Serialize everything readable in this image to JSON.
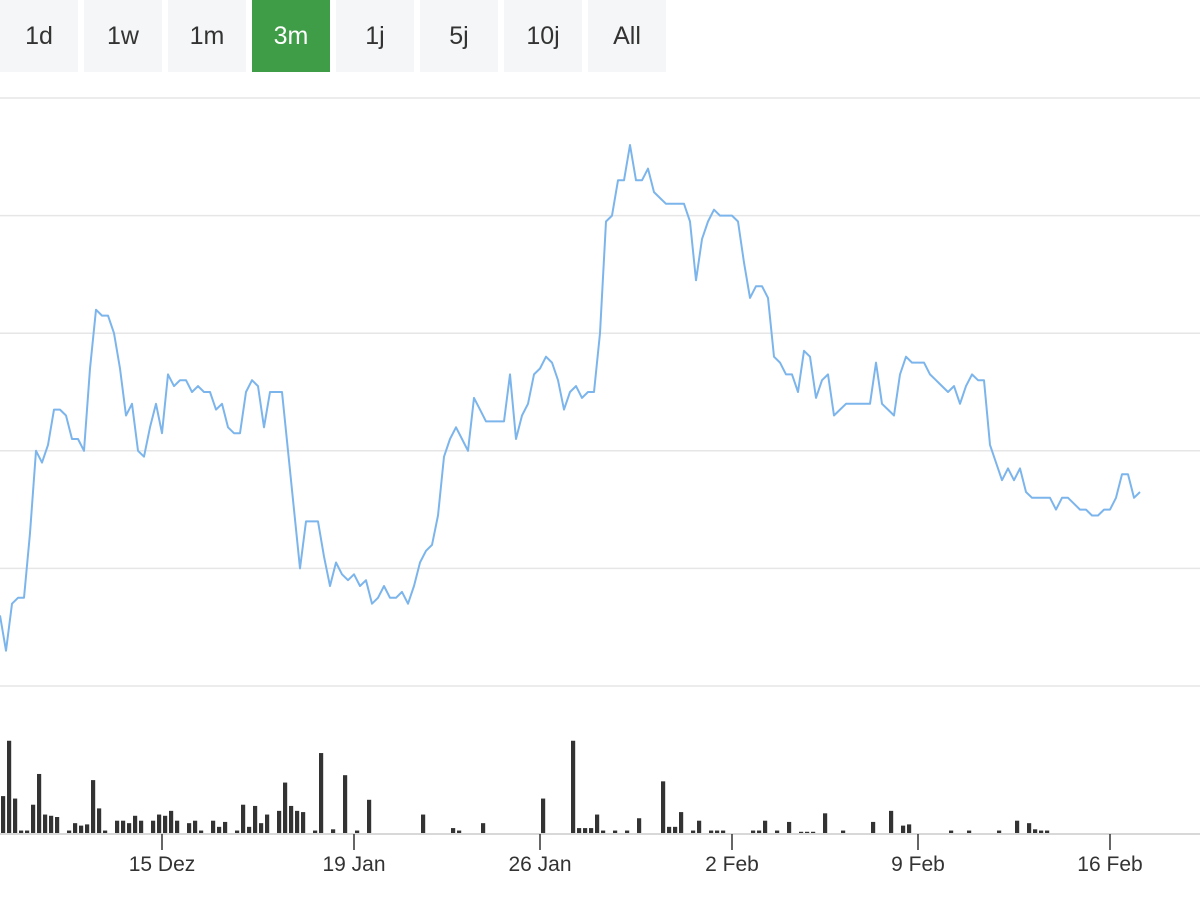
{
  "range_selector": {
    "buttons": [
      {
        "label": "1d",
        "active": false
      },
      {
        "label": "1w",
        "active": false
      },
      {
        "label": "1m",
        "active": false
      },
      {
        "label": "3m",
        "active": true
      },
      {
        "label": "1j",
        "active": false
      },
      {
        "label": "5j",
        "active": false
      },
      {
        "label": "10j",
        "active": false
      },
      {
        "label": "All",
        "active": false
      }
    ],
    "active_color": "#3f9c47"
  },
  "chart_data": {
    "type": "line",
    "title": "",
    "xlabel": "",
    "ylabel": "",
    "grid": true,
    "line_color": "#7cb5ec",
    "volume_color": "#333333",
    "x_ticks": [
      {
        "label": "15 Dez",
        "x": 27
      },
      {
        "label": "19 Jan",
        "x": 59
      },
      {
        "label": "26 Jan",
        "x": 90
      },
      {
        "label": "2 Feb",
        "x": 122
      },
      {
        "label": "9 Feb",
        "x": 153
      },
      {
        "label": "16 Feb",
        "x": 185
      }
    ],
    "x_range": [
      0,
      200
    ],
    "y_range": [
      0,
      5
    ],
    "y_gridlines": [
      0,
      1,
      2,
      3,
      4,
      5
    ],
    "y_tick_labels": [],
    "series": [
      {
        "type": "line",
        "points": [
          [
            0,
            0.6
          ],
          [
            1,
            0.3
          ],
          [
            2,
            0.7
          ],
          [
            3,
            0.75
          ],
          [
            4,
            0.75
          ],
          [
            5,
            1.3
          ],
          [
            6,
            2.0
          ],
          [
            7,
            1.9
          ],
          [
            8,
            2.05
          ],
          [
            9,
            2.35
          ],
          [
            10,
            2.35
          ],
          [
            11,
            2.3
          ],
          [
            12,
            2.1
          ],
          [
            13,
            2.1
          ],
          [
            14,
            2.0
          ],
          [
            15,
            2.7
          ],
          [
            16,
            3.2
          ],
          [
            17,
            3.15
          ],
          [
            18,
            3.15
          ],
          [
            19,
            3.0
          ],
          [
            20,
            2.7
          ],
          [
            21,
            2.3
          ],
          [
            22,
            2.4
          ],
          [
            23,
            2.0
          ],
          [
            24,
            1.95
          ],
          [
            25,
            2.2
          ],
          [
            26,
            2.4
          ],
          [
            27,
            2.15
          ],
          [
            28,
            2.65
          ],
          [
            29,
            2.55
          ],
          [
            30,
            2.6
          ],
          [
            31,
            2.6
          ],
          [
            32,
            2.5
          ],
          [
            33,
            2.55
          ],
          [
            34,
            2.5
          ],
          [
            35,
            2.5
          ],
          [
            36,
            2.35
          ],
          [
            37,
            2.4
          ],
          [
            38,
            2.2
          ],
          [
            39,
            2.15
          ],
          [
            40,
            2.15
          ],
          [
            41,
            2.5
          ],
          [
            42,
            2.6
          ],
          [
            43,
            2.55
          ],
          [
            44,
            2.2
          ],
          [
            45,
            2.5
          ],
          [
            46,
            2.5
          ],
          [
            47,
            2.5
          ],
          [
            48,
            2.0
          ],
          [
            49,
            1.5
          ],
          [
            50,
            1.0
          ],
          [
            51,
            1.4
          ],
          [
            52,
            1.4
          ],
          [
            53,
            1.4
          ],
          [
            54,
            1.1
          ],
          [
            55,
            0.85
          ],
          [
            56,
            1.05
          ],
          [
            57,
            0.95
          ],
          [
            58,
            0.9
          ],
          [
            59,
            0.95
          ],
          [
            60,
            0.85
          ],
          [
            61,
            0.9
          ],
          [
            62,
            0.7
          ],
          [
            63,
            0.75
          ],
          [
            64,
            0.85
          ],
          [
            65,
            0.75
          ],
          [
            66,
            0.75
          ],
          [
            67,
            0.8
          ],
          [
            68,
            0.7
          ],
          [
            69,
            0.85
          ],
          [
            70,
            1.05
          ],
          [
            71,
            1.15
          ],
          [
            72,
            1.2
          ],
          [
            73,
            1.45
          ],
          [
            74,
            1.95
          ],
          [
            75,
            2.1
          ],
          [
            76,
            2.2
          ],
          [
            77,
            2.1
          ],
          [
            78,
            2.0
          ],
          [
            79,
            2.45
          ],
          [
            80,
            2.35
          ],
          [
            81,
            2.25
          ],
          [
            82,
            2.25
          ],
          [
            83,
            2.25
          ],
          [
            84,
            2.25
          ],
          [
            85,
            2.65
          ],
          [
            86,
            2.1
          ],
          [
            87,
            2.3
          ],
          [
            88,
            2.4
          ],
          [
            89,
            2.65
          ],
          [
            90,
            2.7
          ],
          [
            91,
            2.8
          ],
          [
            92,
            2.75
          ],
          [
            93,
            2.6
          ],
          [
            94,
            2.35
          ],
          [
            95,
            2.5
          ],
          [
            96,
            2.55
          ],
          [
            97,
            2.45
          ],
          [
            98,
            2.5
          ],
          [
            99,
            2.5
          ],
          [
            100,
            3.0
          ],
          [
            101,
            3.95
          ],
          [
            102,
            4.0
          ],
          [
            103,
            4.3
          ],
          [
            104,
            4.3
          ],
          [
            105,
            4.6
          ],
          [
            106,
            4.3
          ],
          [
            107,
            4.3
          ],
          [
            108,
            4.4
          ],
          [
            109,
            4.2
          ],
          [
            110,
            4.15
          ],
          [
            111,
            4.1
          ],
          [
            112,
            4.1
          ],
          [
            113,
            4.1
          ],
          [
            114,
            4.1
          ],
          [
            115,
            3.95
          ],
          [
            116,
            3.45
          ],
          [
            117,
            3.8
          ],
          [
            118,
            3.95
          ],
          [
            119,
            4.05
          ],
          [
            120,
            4.0
          ],
          [
            121,
            4.0
          ],
          [
            122,
            4.0
          ],
          [
            123,
            3.95
          ],
          [
            124,
            3.6
          ],
          [
            125,
            3.3
          ],
          [
            126,
            3.4
          ],
          [
            127,
            3.4
          ],
          [
            128,
            3.3
          ],
          [
            129,
            2.8
          ],
          [
            130,
            2.75
          ],
          [
            131,
            2.65
          ],
          [
            132,
            2.65
          ],
          [
            133,
            2.5
          ],
          [
            134,
            2.85
          ],
          [
            135,
            2.8
          ],
          [
            136,
            2.45
          ],
          [
            137,
            2.6
          ],
          [
            138,
            2.65
          ],
          [
            139,
            2.3
          ],
          [
            140,
            2.35
          ],
          [
            141,
            2.4
          ],
          [
            142,
            2.4
          ],
          [
            143,
            2.4
          ],
          [
            144,
            2.4
          ],
          [
            145,
            2.4
          ],
          [
            146,
            2.75
          ],
          [
            147,
            2.4
          ],
          [
            148,
            2.35
          ],
          [
            149,
            2.3
          ],
          [
            150,
            2.65
          ],
          [
            151,
            2.8
          ],
          [
            152,
            2.75
          ],
          [
            153,
            2.75
          ],
          [
            154,
            2.75
          ],
          [
            155,
            2.65
          ],
          [
            156,
            2.6
          ],
          [
            157,
            2.55
          ],
          [
            158,
            2.5
          ],
          [
            159,
            2.55
          ],
          [
            160,
            2.4
          ],
          [
            161,
            2.55
          ],
          [
            162,
            2.65
          ],
          [
            163,
            2.6
          ],
          [
            164,
            2.6
          ],
          [
            165,
            2.05
          ],
          [
            166,
            1.9
          ],
          [
            167,
            1.75
          ],
          [
            168,
            1.85
          ],
          [
            169,
            1.75
          ],
          [
            170,
            1.85
          ],
          [
            171,
            1.65
          ],
          [
            172,
            1.6
          ],
          [
            173,
            1.6
          ],
          [
            174,
            1.6
          ],
          [
            175,
            1.6
          ],
          [
            176,
            1.5
          ],
          [
            177,
            1.6
          ],
          [
            178,
            1.6
          ],
          [
            179,
            1.55
          ],
          [
            180,
            1.5
          ],
          [
            181,
            1.5
          ],
          [
            182,
            1.45
          ],
          [
            183,
            1.45
          ],
          [
            184,
            1.5
          ],
          [
            185,
            1.5
          ],
          [
            186,
            1.6
          ],
          [
            187,
            1.8
          ],
          [
            188,
            1.8
          ],
          [
            189,
            1.6
          ],
          [
            190,
            1.65
          ]
        ]
      },
      {
        "type": "volume",
        "ylim": [
          0,
          1
        ],
        "bars": [
          [
            0,
            0.3
          ],
          [
            1,
            0.75
          ],
          [
            2,
            0.28
          ],
          [
            3,
            0.02
          ],
          [
            4,
            0.02
          ],
          [
            5,
            0.23
          ],
          [
            6,
            0.48
          ],
          [
            7,
            0.15
          ],
          [
            8,
            0.14
          ],
          [
            9,
            0.13
          ],
          [
            11,
            0.02
          ],
          [
            12,
            0.08
          ],
          [
            13,
            0.06
          ],
          [
            14,
            0.07
          ],
          [
            15,
            0.43
          ],
          [
            16,
            0.2
          ],
          [
            17,
            0.02
          ],
          [
            19,
            0.1
          ],
          [
            20,
            0.1
          ],
          [
            21,
            0.08
          ],
          [
            22,
            0.14
          ],
          [
            23,
            0.1
          ],
          [
            25,
            0.1
          ],
          [
            26,
            0.15
          ],
          [
            27,
            0.14
          ],
          [
            28,
            0.18
          ],
          [
            29,
            0.1
          ],
          [
            31,
            0.08
          ],
          [
            32,
            0.1
          ],
          [
            33,
            0.02
          ],
          [
            35,
            0.1
          ],
          [
            36,
            0.05
          ],
          [
            37,
            0.09
          ],
          [
            39,
            0.02
          ],
          [
            40,
            0.23
          ],
          [
            41,
            0.05
          ],
          [
            42,
            0.22
          ],
          [
            43,
            0.08
          ],
          [
            44,
            0.15
          ],
          [
            46,
            0.18
          ],
          [
            47,
            0.41
          ],
          [
            48,
            0.22
          ],
          [
            49,
            0.18
          ],
          [
            50,
            0.17
          ],
          [
            52,
            0.02
          ],
          [
            53,
            0.65
          ],
          [
            55,
            0.03
          ],
          [
            57,
            0.47
          ],
          [
            59,
            0.02
          ],
          [
            61,
            0.27
          ],
          [
            70,
            0.15
          ],
          [
            75,
            0.04
          ],
          [
            76,
            0.02
          ],
          [
            80,
            0.08
          ],
          [
            90,
            0.28
          ],
          [
            95,
            0.75
          ],
          [
            96,
            0.04
          ],
          [
            97,
            0.04
          ],
          [
            98,
            0.04
          ],
          [
            99,
            0.15
          ],
          [
            100,
            0.02
          ],
          [
            102,
            0.02
          ],
          [
            104,
            0.02
          ],
          [
            106,
            0.12
          ],
          [
            110,
            0.42
          ],
          [
            111,
            0.05
          ],
          [
            112,
            0.05
          ],
          [
            113,
            0.17
          ],
          [
            115,
            0.02
          ],
          [
            116,
            0.1
          ],
          [
            118,
            0.02
          ],
          [
            119,
            0.02
          ],
          [
            120,
            0.02
          ],
          [
            125,
            0.02
          ],
          [
            126,
            0.02
          ],
          [
            127,
            0.1
          ],
          [
            129,
            0.02
          ],
          [
            131,
            0.09
          ],
          [
            133,
            0.01
          ],
          [
            134,
            0.01
          ],
          [
            135,
            0.01
          ],
          [
            137,
            0.16
          ],
          [
            140,
            0.02
          ],
          [
            145,
            0.09
          ],
          [
            148,
            0.18
          ],
          [
            150,
            0.06
          ],
          [
            151,
            0.07
          ],
          [
            158,
            0.02
          ],
          [
            161,
            0.02
          ],
          [
            166,
            0.02
          ],
          [
            169,
            0.1
          ],
          [
            171,
            0.08
          ],
          [
            172,
            0.03
          ],
          [
            173,
            0.02
          ],
          [
            174,
            0.02
          ]
        ]
      }
    ]
  }
}
